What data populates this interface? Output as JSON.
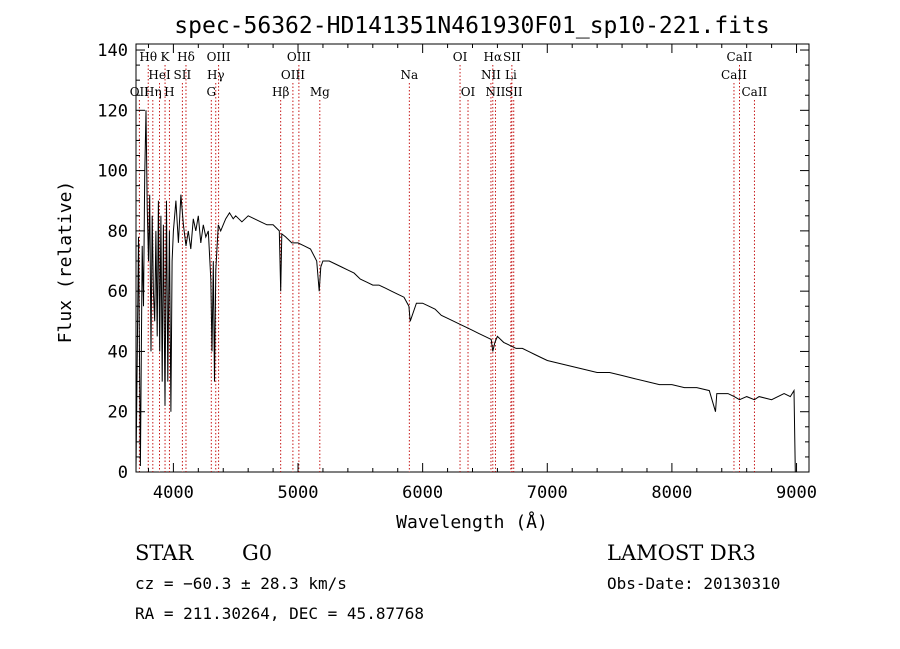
{
  "chart_data": {
    "type": "line",
    "title": "spec-56362-HD141351N461930F01_sp10-221.fits",
    "xlabel": "Wavelength (Å)",
    "ylabel": "Flux (relative)",
    "xlim": [
      3700,
      9100
    ],
    "ylim": [
      0,
      142
    ],
    "x_ticks": [
      4000,
      5000,
      6000,
      7000,
      8000,
      9000
    ],
    "x_tick_labels": [
      "4000",
      "5000",
      "6000",
      "7000",
      "8000",
      "9000"
    ],
    "y_ticks": [
      0,
      20,
      40,
      60,
      80,
      100,
      120,
      140
    ],
    "y_tick_labels": [
      "0",
      "20",
      "40",
      "60",
      "80",
      "100",
      "120",
      "140"
    ],
    "series": [
      {
        "name": "spectrum",
        "x": [
          3700,
          3720,
          3735,
          3750,
          3760,
          3770,
          3780,
          3790,
          3800,
          3810,
          3820,
          3830,
          3840,
          3850,
          3860,
          3870,
          3880,
          3890,
          3900,
          3910,
          3920,
          3933,
          3945,
          3955,
          3968,
          3980,
          3990,
          4000,
          4020,
          4040,
          4060,
          4080,
          4101,
          4120,
          4140,
          4160,
          4180,
          4200,
          4220,
          4240,
          4260,
          4280,
          4300,
          4310,
          4320,
          4330,
          4340,
          4360,
          4380,
          4400,
          4420,
          4450,
          4480,
          4500,
          4550,
          4600,
          4650,
          4700,
          4750,
          4800,
          4850,
          4861,
          4870,
          4900,
          4950,
          5000,
          5050,
          5100,
          5150,
          5170,
          5183,
          5200,
          5250,
          5300,
          5350,
          5400,
          5450,
          5500,
          5550,
          5600,
          5650,
          5700,
          5750,
          5800,
          5850,
          5890,
          5900,
          5950,
          6000,
          6050,
          6100,
          6150,
          6200,
          6250,
          6300,
          6350,
          6400,
          6450,
          6500,
          6550,
          6563,
          6580,
          6600,
          6650,
          6700,
          6750,
          6800,
          6850,
          6900,
          6950,
          7000,
          7100,
          7200,
          7300,
          7400,
          7500,
          7600,
          7700,
          7800,
          7900,
          8000,
          8100,
          8200,
          8300,
          8350,
          8360,
          8400,
          8450,
          8500,
          8542,
          8600,
          8662,
          8700,
          8800,
          8900,
          8950,
          8980,
          8990
        ],
        "y": [
          0,
          78,
          2,
          75,
          55,
          98,
          120,
          88,
          70,
          92,
          40,
          85,
          60,
          50,
          80,
          45,
          90,
          40,
          85,
          30,
          82,
          22,
          90,
          30,
          80,
          20,
          70,
          80,
          90,
          76,
          92,
          82,
          75,
          80,
          74,
          84,
          80,
          85,
          76,
          82,
          78,
          80,
          64,
          40,
          70,
          30,
          67,
          82,
          80,
          82,
          84,
          86,
          84,
          85,
          83,
          85,
          84,
          83,
          82,
          82,
          80,
          60,
          79,
          78,
          76,
          76,
          75,
          74,
          70,
          60,
          68,
          70,
          70,
          69,
          68,
          67,
          66,
          64,
          63,
          62,
          62,
          61,
          60,
          59,
          58,
          55,
          50,
          56,
          56,
          55,
          54,
          52,
          51,
          50,
          49,
          48,
          47,
          46,
          45,
          44,
          40,
          43,
          45,
          43,
          42,
          41,
          41,
          40,
          39,
          38,
          37,
          36,
          35,
          34,
          33,
          33,
          32,
          31,
          30,
          29,
          29,
          28,
          28,
          27,
          20,
          26,
          26,
          26,
          25,
          24,
          25,
          24,
          25,
          24,
          26,
          25,
          27,
          0
        ]
      }
    ],
    "line_markers": [
      {
        "label": "OII",
        "x": 3727,
        "row": 2
      },
      {
        "label": "Hη",
        "x": 3835,
        "row": 2
      },
      {
        "label": "Hθ",
        "x": 3798,
        "row": 0
      },
      {
        "label": "K",
        "x": 3933,
        "row": 0
      },
      {
        "label": "HeI",
        "x": 3889,
        "row": 1
      },
      {
        "label": "H",
        "x": 3968,
        "row": 2
      },
      {
        "label": "SII",
        "x": 4072,
        "row": 1
      },
      {
        "label": "Hδ",
        "x": 4101,
        "row": 0
      },
      {
        "label": "OIII",
        "x": 4363,
        "row": 0
      },
      {
        "label": "Hγ",
        "x": 4340,
        "row": 1
      },
      {
        "label": "G",
        "x": 4304,
        "row": 2
      },
      {
        "label": "Hβ",
        "x": 4861,
        "row": 2
      },
      {
        "label": "OIII",
        "x": 5007,
        "row": 0
      },
      {
        "label": "OIII",
        "x": 4959,
        "row": 1
      },
      {
        "label": "Mg",
        "x": 5175,
        "row": 2
      },
      {
        "label": "Na",
        "x": 5893,
        "row": 1
      },
      {
        "label": "OI",
        "x": 6300,
        "row": 0
      },
      {
        "label": "OI",
        "x": 6364,
        "row": 2
      },
      {
        "label": "Hα",
        "x": 6563,
        "row": 0
      },
      {
        "label": "SII",
        "x": 6716,
        "row": 0
      },
      {
        "label": "NII",
        "x": 6548,
        "row": 1
      },
      {
        "label": "Li",
        "x": 6708,
        "row": 1
      },
      {
        "label": "NII",
        "x": 6584,
        "row": 2
      },
      {
        "label": "SII",
        "x": 6731,
        "row": 2
      },
      {
        "label": "CaII",
        "x": 8542,
        "row": 0
      },
      {
        "label": "CaII",
        "x": 8498,
        "row": 1
      },
      {
        "label": "CaII",
        "x": 8662,
        "row": 2
      }
    ]
  },
  "info": {
    "object_class": "STAR",
    "subclass": "G0",
    "survey": "LAMOST DR3",
    "redshift_line": "cz = −60.3 ± 28.3 km/s",
    "obs_date": "Obs-Date: 20130310",
    "coords": "RA = 211.30264, DEC =  45.87768"
  },
  "colors": {
    "spectrum": "#000000",
    "marker_line": "#c00000",
    "axes": "#000000"
  }
}
